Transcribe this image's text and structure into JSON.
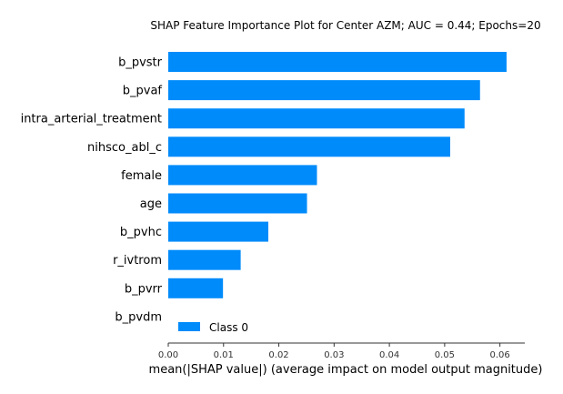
{
  "chart_data": {
    "type": "bar",
    "orientation": "horizontal",
    "title": "SHAP Feature Importance Plot for Center AZM; AUC = 0.44; Epochs=20",
    "xlabel": "mean(|SHAP value|) (average impact on model output magnitude)",
    "ylabel": "",
    "categories": [
      "b_pvstr",
      "b_pvaf",
      "intra_arterial_treatment",
      "nihsco_abl_c",
      "female",
      "age",
      "b_pvhc",
      "r_ivtrom",
      "b_pvrr",
      "b_pvdm"
    ],
    "series": [
      {
        "name": "Class 0",
        "color": "#008bfb",
        "values": [
          0.0612,
          0.0564,
          0.0536,
          0.051,
          0.0269,
          0.0251,
          0.0181,
          0.0131,
          0.0099,
          0.0
        ]
      }
    ],
    "xlim": [
      0.0,
      0.0645
    ],
    "xticks": [
      "0.00",
      "0.01",
      "0.02",
      "0.03",
      "0.04",
      "0.05",
      "0.06"
    ],
    "grid": false,
    "legend_position": "lower-left inside axes"
  }
}
